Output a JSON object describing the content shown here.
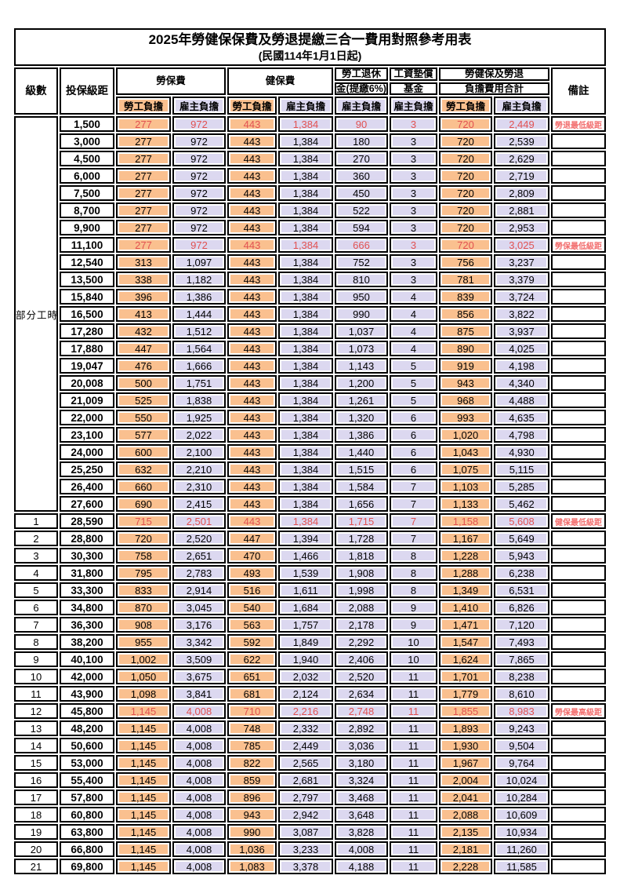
{
  "title": "2025年勞健保保費及勞退提繳三合一費用對照參考用表",
  "subtitle": "(民國114年1月1日起)",
  "colors": {
    "orange": "#FAC08F",
    "lavender": "#DCD8F0",
    "red_value": "#E25252",
    "red_note": "#F26D6D",
    "border": "#000000"
  },
  "headers": {
    "level": "級數",
    "bracket": "投保級距",
    "labor": "勞保費",
    "health": "健保費",
    "pension_line1": "勞工退休",
    "pension_line2": "金(提繳6%)",
    "wage_line1": "工資墊償",
    "wage_line2": "基金",
    "total_line1": "勞健保及勞退",
    "total_line2": "負擔費用合計",
    "note": "備註",
    "employee": "勞工負擔",
    "employer": "雇主負擔"
  },
  "table": {
    "part_time_label": "部分工時",
    "part_time_rowspan": 23,
    "value_col_bg": [
      "o",
      "l",
      "o",
      "l",
      "l",
      "l",
      "o",
      "l"
    ],
    "rows": [
      {
        "level": "",
        "bracket": "1,500",
        "values": [
          "277",
          "972",
          "443",
          "1,384",
          "90",
          "3",
          "720",
          "2,449"
        ],
        "note": "勞退最低級距",
        "red": true
      },
      {
        "level": "",
        "bracket": "3,000",
        "values": [
          "277",
          "972",
          "443",
          "1,384",
          "180",
          "3",
          "720",
          "2,539"
        ],
        "note": "",
        "red": false
      },
      {
        "level": "",
        "bracket": "4,500",
        "values": [
          "277",
          "972",
          "443",
          "1,384",
          "270",
          "3",
          "720",
          "2,629"
        ],
        "note": "",
        "red": false
      },
      {
        "level": "",
        "bracket": "6,000",
        "values": [
          "277",
          "972",
          "443",
          "1,384",
          "360",
          "3",
          "720",
          "2,719"
        ],
        "note": "",
        "red": false
      },
      {
        "level": "",
        "bracket": "7,500",
        "values": [
          "277",
          "972",
          "443",
          "1,384",
          "450",
          "3",
          "720",
          "2,809"
        ],
        "note": "",
        "red": false
      },
      {
        "level": "",
        "bracket": "8,700",
        "values": [
          "277",
          "972",
          "443",
          "1,384",
          "522",
          "3",
          "720",
          "2,881"
        ],
        "note": "",
        "red": false
      },
      {
        "level": "",
        "bracket": "9,900",
        "values": [
          "277",
          "972",
          "443",
          "1,384",
          "594",
          "3",
          "720",
          "2,953"
        ],
        "note": "",
        "red": false
      },
      {
        "level": "",
        "bracket": "11,100",
        "values": [
          "277",
          "972",
          "443",
          "1,384",
          "666",
          "3",
          "720",
          "3,025"
        ],
        "note": "勞保最低級距",
        "red": true
      },
      {
        "level": "",
        "bracket": "12,540",
        "values": [
          "313",
          "1,097",
          "443",
          "1,384",
          "752",
          "3",
          "756",
          "3,237"
        ],
        "note": "",
        "red": false
      },
      {
        "level": "",
        "bracket": "13,500",
        "values": [
          "338",
          "1,182",
          "443",
          "1,384",
          "810",
          "3",
          "781",
          "3,379"
        ],
        "note": "",
        "red": false
      },
      {
        "level": "",
        "bracket": "15,840",
        "values": [
          "396",
          "1,386",
          "443",
          "1,384",
          "950",
          "4",
          "839",
          "3,724"
        ],
        "note": "",
        "red": false
      },
      {
        "level": "",
        "bracket": "16,500",
        "values": [
          "413",
          "1,444",
          "443",
          "1,384",
          "990",
          "4",
          "856",
          "3,822"
        ],
        "note": "",
        "red": false
      },
      {
        "level": "",
        "bracket": "17,280",
        "values": [
          "432",
          "1,512",
          "443",
          "1,384",
          "1,037",
          "4",
          "875",
          "3,937"
        ],
        "note": "",
        "red": false
      },
      {
        "level": "",
        "bracket": "17,880",
        "values": [
          "447",
          "1,564",
          "443",
          "1,384",
          "1,073",
          "4",
          "890",
          "4,025"
        ],
        "note": "",
        "red": false
      },
      {
        "level": "",
        "bracket": "19,047",
        "values": [
          "476",
          "1,666",
          "443",
          "1,384",
          "1,143",
          "5",
          "919",
          "4,198"
        ],
        "note": "",
        "red": false
      },
      {
        "level": "",
        "bracket": "20,008",
        "values": [
          "500",
          "1,751",
          "443",
          "1,384",
          "1,200",
          "5",
          "943",
          "4,340"
        ],
        "note": "",
        "red": false
      },
      {
        "level": "",
        "bracket": "21,009",
        "values": [
          "525",
          "1,838",
          "443",
          "1,384",
          "1,261",
          "5",
          "968",
          "4,488"
        ],
        "note": "",
        "red": false
      },
      {
        "level": "",
        "bracket": "22,000",
        "values": [
          "550",
          "1,925",
          "443",
          "1,384",
          "1,320",
          "6",
          "993",
          "4,635"
        ],
        "note": "",
        "red": false
      },
      {
        "level": "",
        "bracket": "23,100",
        "values": [
          "577",
          "2,022",
          "443",
          "1,384",
          "1,386",
          "6",
          "1,020",
          "4,798"
        ],
        "note": "",
        "red": false
      },
      {
        "level": "",
        "bracket": "24,000",
        "values": [
          "600",
          "2,100",
          "443",
          "1,384",
          "1,440",
          "6",
          "1,043",
          "4,930"
        ],
        "note": "",
        "red": false
      },
      {
        "level": "",
        "bracket": "25,250",
        "values": [
          "632",
          "2,210",
          "443",
          "1,384",
          "1,515",
          "6",
          "1,075",
          "5,115"
        ],
        "note": "",
        "red": false
      },
      {
        "level": "",
        "bracket": "26,400",
        "values": [
          "660",
          "2,310",
          "443",
          "1,384",
          "1,584",
          "7",
          "1,103",
          "5,285"
        ],
        "note": "",
        "red": false
      },
      {
        "level": "",
        "bracket": "27,600",
        "values": [
          "690",
          "2,415",
          "443",
          "1,384",
          "1,656",
          "7",
          "1,133",
          "5,462"
        ],
        "note": "",
        "red": false
      },
      {
        "level": "1",
        "bracket": "28,590",
        "values": [
          "715",
          "2,501",
          "443",
          "1,384",
          "1,715",
          "7",
          "1,158",
          "5,608"
        ],
        "note": "健保最低級距",
        "red": true
      },
      {
        "level": "2",
        "bracket": "28,800",
        "values": [
          "720",
          "2,520",
          "447",
          "1,394",
          "1,728",
          "7",
          "1,167",
          "5,649"
        ],
        "note": "",
        "red": false
      },
      {
        "level": "3",
        "bracket": "30,300",
        "values": [
          "758",
          "2,651",
          "470",
          "1,466",
          "1,818",
          "8",
          "1,228",
          "5,943"
        ],
        "note": "",
        "red": false
      },
      {
        "level": "4",
        "bracket": "31,800",
        "values": [
          "795",
          "2,783",
          "493",
          "1,539",
          "1,908",
          "8",
          "1,288",
          "6,238"
        ],
        "note": "",
        "red": false
      },
      {
        "level": "5",
        "bracket": "33,300",
        "values": [
          "833",
          "2,914",
          "516",
          "1,611",
          "1,998",
          "8",
          "1,349",
          "6,531"
        ],
        "note": "",
        "red": false
      },
      {
        "level": "6",
        "bracket": "34,800",
        "values": [
          "870",
          "3,045",
          "540",
          "1,684",
          "2,088",
          "9",
          "1,410",
          "6,826"
        ],
        "note": "",
        "red": false
      },
      {
        "level": "7",
        "bracket": "36,300",
        "values": [
          "908",
          "3,176",
          "563",
          "1,757",
          "2,178",
          "9",
          "1,471",
          "7,120"
        ],
        "note": "",
        "red": false
      },
      {
        "level": "8",
        "bracket": "38,200",
        "values": [
          "955",
          "3,342",
          "592",
          "1,849",
          "2,292",
          "10",
          "1,547",
          "7,493"
        ],
        "note": "",
        "red": false
      },
      {
        "level": "9",
        "bracket": "40,100",
        "values": [
          "1,002",
          "3,509",
          "622",
          "1,940",
          "2,406",
          "10",
          "1,624",
          "7,865"
        ],
        "note": "",
        "red": false
      },
      {
        "level": "10",
        "bracket": "42,000",
        "values": [
          "1,050",
          "3,675",
          "651",
          "2,032",
          "2,520",
          "11",
          "1,701",
          "8,238"
        ],
        "note": "",
        "red": false
      },
      {
        "level": "11",
        "bracket": "43,900",
        "values": [
          "1,098",
          "3,841",
          "681",
          "2,124",
          "2,634",
          "11",
          "1,779",
          "8,610"
        ],
        "note": "",
        "red": false
      },
      {
        "level": "12",
        "bracket": "45,800",
        "values": [
          "1,145",
          "4,008",
          "710",
          "2,216",
          "2,748",
          "11",
          "1,855",
          "8,983"
        ],
        "note": "勞保最高級距",
        "red": true
      },
      {
        "level": "13",
        "bracket": "48,200",
        "values": [
          "1,145",
          "4,008",
          "748",
          "2,332",
          "2,892",
          "11",
          "1,893",
          "9,243"
        ],
        "note": "",
        "red": false
      },
      {
        "level": "14",
        "bracket": "50,600",
        "values": [
          "1,145",
          "4,008",
          "785",
          "2,449",
          "3,036",
          "11",
          "1,930",
          "9,504"
        ],
        "note": "",
        "red": false
      },
      {
        "level": "15",
        "bracket": "53,000",
        "values": [
          "1,145",
          "4,008",
          "822",
          "2,565",
          "3,180",
          "11",
          "1,967",
          "9,764"
        ],
        "note": "",
        "red": false
      },
      {
        "level": "16",
        "bracket": "55,400",
        "values": [
          "1,145",
          "4,008",
          "859",
          "2,681",
          "3,324",
          "11",
          "2,004",
          "10,024"
        ],
        "note": "",
        "red": false
      },
      {
        "level": "17",
        "bracket": "57,800",
        "values": [
          "1,145",
          "4,008",
          "896",
          "2,797",
          "3,468",
          "11",
          "2,041",
          "10,284"
        ],
        "note": "",
        "red": false
      },
      {
        "level": "18",
        "bracket": "60,800",
        "values": [
          "1,145",
          "4,008",
          "943",
          "2,942",
          "3,648",
          "11",
          "2,088",
          "10,609"
        ],
        "note": "",
        "red": false
      },
      {
        "level": "19",
        "bracket": "63,800",
        "values": [
          "1,145",
          "4,008",
          "990",
          "3,087",
          "3,828",
          "11",
          "2,135",
          "10,934"
        ],
        "note": "",
        "red": false
      },
      {
        "level": "20",
        "bracket": "66,800",
        "values": [
          "1,145",
          "4,008",
          "1,036",
          "3,233",
          "4,008",
          "11",
          "2,181",
          "11,260"
        ],
        "note": "",
        "red": false
      },
      {
        "level": "21",
        "bracket": "69,800",
        "values": [
          "1,145",
          "4,008",
          "1,083",
          "3,378",
          "4,188",
          "11",
          "2,228",
          "11,585"
        ],
        "note": "",
        "red": false
      }
    ]
  }
}
